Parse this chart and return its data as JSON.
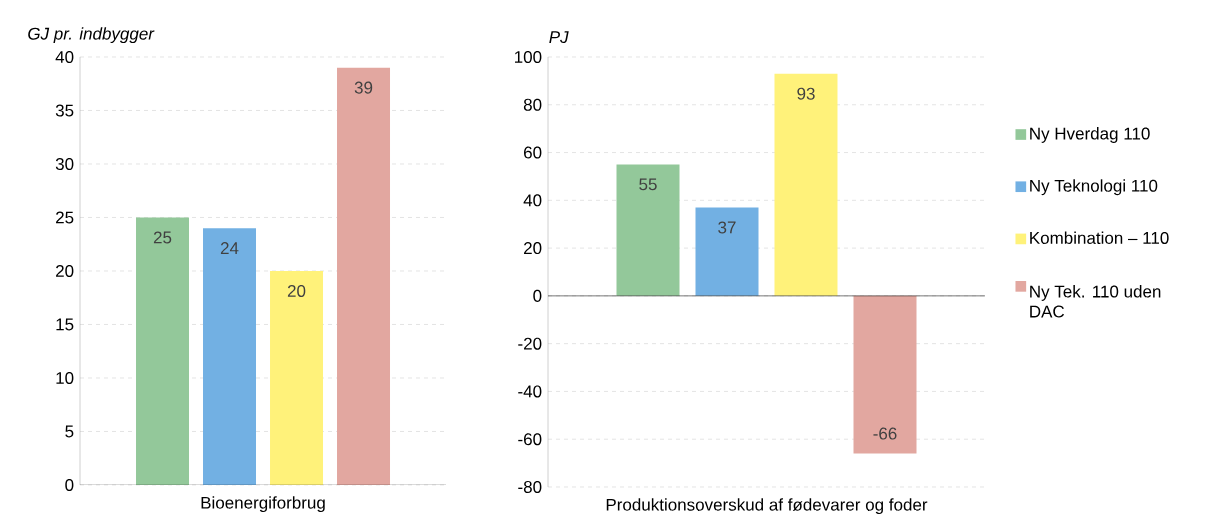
{
  "chart_data": [
    {
      "type": "bar",
      "ylabel": "GJ pr. indbygger",
      "categories": [
        "Bioenergiforbrug"
      ],
      "series": [
        {
          "color": "#93c89a",
          "values": [
            25
          ]
        },
        {
          "color": "#72b0e3",
          "values": [
            24
          ]
        },
        {
          "color": "#fff27a",
          "values": [
            20
          ]
        },
        {
          "color": "#e2a7a0",
          "values": [
            39
          ]
        }
      ],
      "ylim": [
        0,
        40
      ],
      "yticks": [
        0,
        5,
        10,
        15,
        20,
        25,
        30,
        35,
        40
      ],
      "grid": "y",
      "data_labels": true
    },
    {
      "type": "bar",
      "ylabel": "PJ",
      "categories": [
        "Produktionsoverskud af fødevarer og foder"
      ],
      "series": [
        {
          "name": "Ny Hverdag 110",
          "color": "#93c89a",
          "values": [
            55
          ]
        },
        {
          "name": "Ny Teknologi 110",
          "color": "#72b0e3",
          "values": [
            37
          ]
        },
        {
          "name": "Kombination – 110",
          "color": "#fff27a",
          "values": [
            93
          ]
        },
        {
          "name": "Ny Tek. 110 uden DAC",
          "color": "#e2a7a0",
          "values": [
            -66
          ]
        }
      ],
      "ylim": [
        -80,
        100
      ],
      "yticks": [
        -80,
        -60,
        -40,
        -20,
        0,
        20,
        40,
        60,
        80,
        100
      ],
      "grid": "y",
      "data_labels": true,
      "legend": "right"
    }
  ]
}
